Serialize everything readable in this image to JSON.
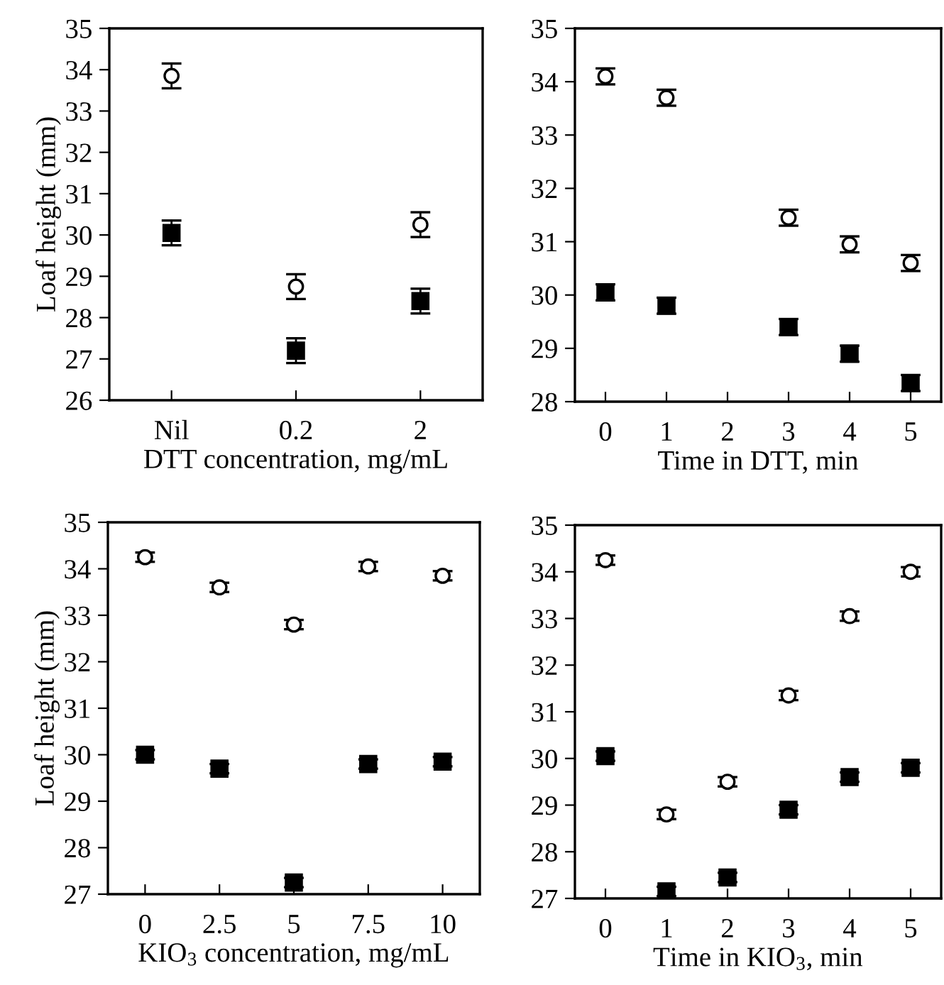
{
  "chart_data": [
    {
      "type": "scatter",
      "categories": [
        "Nil",
        "0.2",
        "2"
      ],
      "xlabel": "DTT concentration, mg/mL",
      "ylabel": "Loaf height (mm)",
      "ylim": [
        26,
        35
      ],
      "yticks": [
        26,
        27,
        28,
        29,
        30,
        31,
        32,
        33,
        34,
        35
      ],
      "series": [
        {
          "color": "#000000",
          "marker": "circle",
          "values": [
            33.85,
            28.75,
            30.25
          ],
          "errors": [
            0.3,
            0.3,
            0.3
          ]
        },
        {
          "color": "#000000",
          "marker": "square",
          "values": [
            30.05,
            27.2,
            28.4
          ],
          "errors": [
            0.3,
            0.3,
            0.3
          ]
        }
      ]
    },
    {
      "type": "scatter",
      "x": [
        0,
        1,
        3,
        4,
        5
      ],
      "xlabel": "Time in DTT, min",
      "xlim": [
        -0.5,
        5.5
      ],
      "xticks": [
        0,
        1,
        2,
        3,
        4,
        5
      ],
      "ylim": [
        28,
        35
      ],
      "yticks": [
        28,
        29,
        30,
        31,
        32,
        33,
        34,
        35
      ],
      "series": [
        {
          "color": "#000000",
          "marker": "circle",
          "values": [
            34.1,
            33.7,
            31.45,
            30.95,
            30.6
          ],
          "errors": [
            0.15,
            0.15,
            0.15,
            0.15,
            0.15
          ]
        },
        {
          "color": "#000000",
          "marker": "square",
          "values": [
            30.05,
            29.8,
            29.4,
            28.9,
            28.35
          ],
          "errors": [
            0.15,
            0.15,
            0.15,
            0.15,
            0.15
          ]
        }
      ]
    },
    {
      "type": "scatter",
      "x": [
        0,
        2.5,
        5,
        7.5,
        10
      ],
      "xlabel": "KIO$_{3}$ concentration, mg/mL",
      "ylabel": "Loaf height (mm)",
      "xlim": [
        -1.25,
        11.25
      ],
      "xticks": [
        0,
        2.5,
        5,
        7.5,
        10
      ],
      "ylim": [
        27,
        35
      ],
      "yticks": [
        27,
        28,
        29,
        30,
        31,
        32,
        33,
        34,
        35
      ],
      "series": [
        {
          "color": "#000000",
          "marker": "circle",
          "values": [
            34.25,
            33.6,
            32.8,
            34.05,
            33.85
          ],
          "errors": [
            0.1,
            0.1,
            0.1,
            0.1,
            0.1
          ]
        },
        {
          "color": "#000000",
          "marker": "square",
          "values": [
            30.0,
            29.7,
            27.25,
            29.8,
            29.85
          ],
          "errors": [
            0.1,
            0.1,
            0.1,
            0.1,
            0.1
          ]
        }
      ]
    },
    {
      "type": "scatter",
      "x": [
        0,
        1,
        2,
        3,
        4,
        5
      ],
      "xlabel": "Time in KIO$_{3}$, min",
      "xlim": [
        -0.5,
        5.5
      ],
      "xticks": [
        0,
        1,
        2,
        3,
        4,
        5
      ],
      "ylim": [
        27,
        35
      ],
      "yticks": [
        27,
        28,
        29,
        30,
        31,
        32,
        33,
        34,
        35
      ],
      "series": [
        {
          "color": "#000000",
          "marker": "circle",
          "values": [
            34.25,
            28.8,
            29.5,
            31.35,
            33.05,
            34.0
          ],
          "errors": [
            0.1,
            0.1,
            0.1,
            0.1,
            0.1,
            0.1
          ]
        },
        {
          "color": "#000000",
          "marker": "square",
          "values": [
            30.05,
            27.15,
            27.45,
            28.9,
            29.6,
            29.8
          ],
          "errors": [
            0.1,
            0.1,
            0.1,
            0.1,
            0.1,
            0.1
          ]
        }
      ]
    }
  ]
}
